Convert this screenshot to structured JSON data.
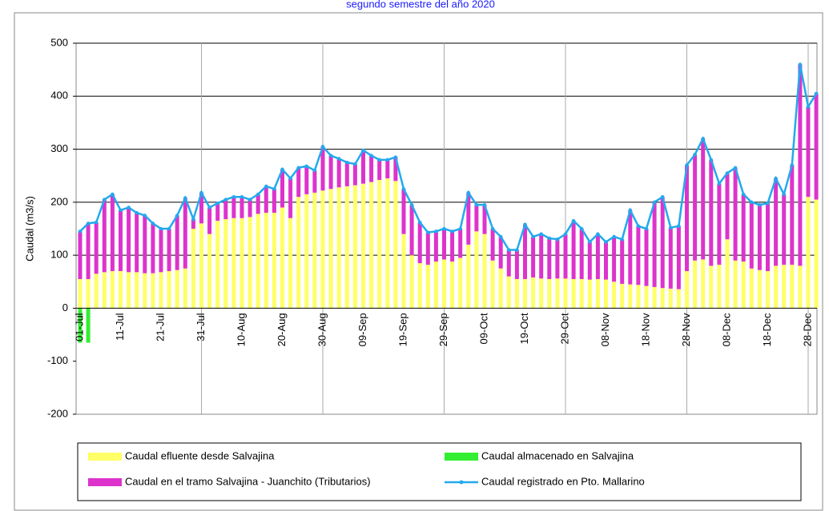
{
  "chart_data": {
    "type": "stacked-bar-line",
    "title": "segundo semestre del año 2020",
    "y_label": "Caudal (m3/s)",
    "ylim": [
      -200,
      500
    ],
    "yticks": [
      -200,
      -100,
      0,
      100,
      200,
      300,
      400,
      500
    ],
    "grid": true,
    "categories": [
      "01-Jul",
      null,
      null,
      null,
      null,
      "11-Jul",
      null,
      null,
      null,
      null,
      "21-Jul",
      null,
      null,
      null,
      null,
      "31-Jul",
      null,
      null,
      null,
      null,
      "10-Aug",
      null,
      null,
      null,
      null,
      "20-Aug",
      null,
      null,
      null,
      null,
      "30-Aug",
      null,
      null,
      null,
      null,
      "09-Sep",
      null,
      null,
      null,
      null,
      "19-Sep",
      null,
      null,
      null,
      null,
      "29-Sep",
      null,
      null,
      null,
      null,
      "09-Oct",
      null,
      null,
      null,
      null,
      "19-Oct",
      null,
      null,
      null,
      null,
      "29-Oct",
      null,
      null,
      null,
      null,
      "08-Nov",
      null,
      null,
      null,
      null,
      "18-Nov",
      null,
      null,
      null,
      null,
      "28-Nov",
      null,
      null,
      null,
      null,
      "08-Dec",
      null,
      null,
      null,
      null,
      "18-Dec",
      null,
      null,
      null,
      null,
      "28-Dec",
      null
    ],
    "series": [
      {
        "name": "Caudal efluente desde Salvajina",
        "color": "#ffff66",
        "kind": "bar",
        "values": [
          55,
          55,
          65,
          68,
          70,
          70,
          68,
          68,
          66,
          66,
          68,
          70,
          72,
          75,
          150,
          160,
          140,
          165,
          168,
          170,
          170,
          172,
          178,
          180,
          180,
          190,
          170,
          210,
          215,
          218,
          222,
          225,
          228,
          230,
          232,
          235,
          238,
          242,
          245,
          240,
          140,
          100,
          85,
          82,
          88,
          92,
          88,
          95,
          120,
          145,
          140,
          90,
          75,
          60,
          55,
          55,
          58,
          56,
          55,
          56,
          56,
          55,
          55,
          54,
          55,
          54,
          50,
          46,
          45,
          44,
          42,
          40,
          38,
          37,
          36,
          70,
          90,
          92,
          80,
          82,
          130,
          90,
          88,
          75,
          72,
          70,
          80,
          82,
          82,
          80,
          210,
          205
        ]
      },
      {
        "name": "Caudal almacenado en Salvajina",
        "color": "#33ee33",
        "kind": "bar",
        "values": [
          -65,
          -65,
          0,
          0,
          0,
          0,
          0,
          0,
          0,
          0,
          0,
          0,
          0,
          0,
          0,
          0,
          0,
          0,
          0,
          0,
          0,
          0,
          0,
          0,
          0,
          0,
          0,
          0,
          0,
          0,
          0,
          0,
          0,
          0,
          0,
          0,
          0,
          0,
          0,
          0,
          0,
          0,
          0,
          0,
          0,
          0,
          0,
          0,
          0,
          0,
          0,
          0,
          0,
          0,
          0,
          0,
          0,
          0,
          0,
          0,
          0,
          0,
          0,
          0,
          0,
          0,
          0,
          0,
          0,
          0,
          0,
          0,
          0,
          0,
          0,
          0,
          0,
          0,
          0,
          0,
          0,
          0,
          0,
          0,
          0,
          0,
          0,
          0,
          0,
          0,
          0,
          0
        ]
      },
      {
        "name": "Caudal en  el tramo Salvajina - Juanchito (Tributarios)",
        "color": "#dd33cc",
        "kind": "bar",
        "values": [
          90,
          105,
          97,
          137,
          145,
          115,
          122,
          112,
          109,
          94,
          82,
          80,
          103,
          133,
          18,
          58,
          50,
          33,
          37,
          40,
          40,
          33,
          37,
          50,
          45,
          72,
          75,
          55,
          53,
          42,
          83,
          63,
          54,
          45,
          40,
          63,
          50,
          38,
          35,
          45,
          85,
          95,
          77,
          61,
          57,
          58,
          57,
          55,
          98,
          50,
          55,
          60,
          60,
          50,
          55,
          103,
          77,
          84,
          77,
          74,
          84,
          110,
          95,
          71,
          85,
          71,
          85,
          84,
          140,
          111,
          108,
          160,
          172,
          115,
          119,
          200,
          200,
          228,
          200,
          153,
          125,
          175,
          127,
          125,
          123,
          128,
          165,
          133,
          188,
          380,
          170,
          200
        ]
      },
      {
        "name": "Caudal registrado en Pto. Mallarino",
        "color": "#22aaee",
        "kind": "line",
        "values": [
          145,
          160,
          162,
          205,
          215,
          185,
          190,
          180,
          175,
          160,
          150,
          150,
          175,
          208,
          168,
          218,
          190,
          198,
          205,
          210,
          210,
          205,
          215,
          230,
          225,
          262,
          245,
          265,
          268,
          260,
          305,
          288,
          282,
          275,
          272,
          298,
          288,
          280,
          280,
          285,
          225,
          195,
          162,
          143,
          145,
          150,
          145,
          150,
          218,
          195,
          195,
          150,
          135,
          110,
          110,
          158,
          135,
          140,
          132,
          130,
          140,
          165,
          150,
          125,
          140,
          125,
          135,
          130,
          185,
          155,
          150,
          200,
          210,
          152,
          155,
          270,
          290,
          320,
          280,
          235,
          255,
          265,
          215,
          200,
          195,
          198,
          245,
          215,
          270,
          460,
          380,
          405
        ]
      }
    ]
  }
}
